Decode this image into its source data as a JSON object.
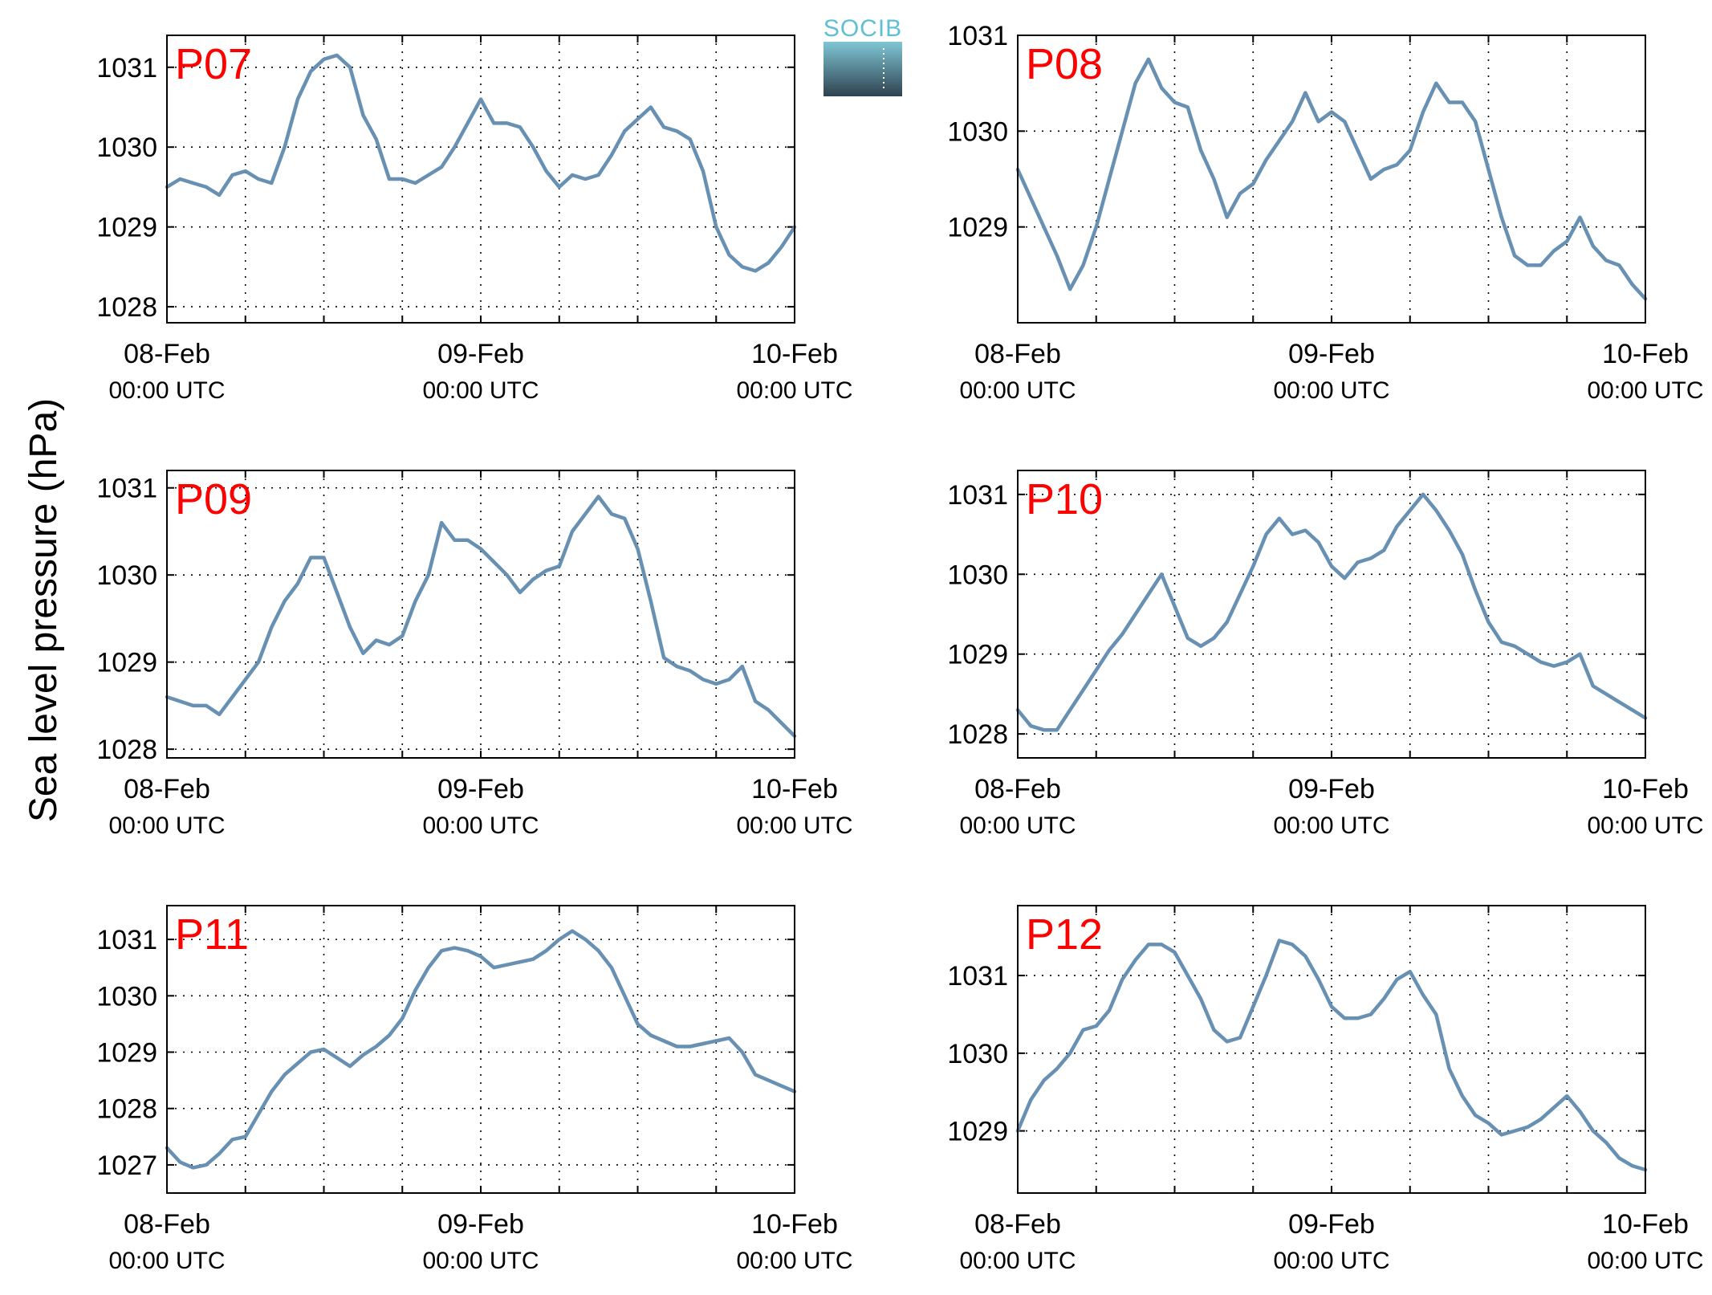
{
  "figure": {
    "ylabel": "Sea level pressure (hPa)",
    "logo_text": "SOCIB",
    "colors": {
      "line": "#6790b3",
      "panel_label": "#ff0000",
      "axes": "#000000",
      "grid": "#000000",
      "logo_text": "#5fc0d3",
      "logo_top": "#7fc6d4",
      "logo_bottom": "#2f4250"
    }
  },
  "chart_data": [
    {
      "type": "line",
      "panel_label": "P07",
      "grid": true,
      "xlim": [
        "2024-02-08 00:00",
        "2024-02-10 00:00"
      ],
      "xticks": [
        {
          "line1": "08-Feb",
          "line2": "00:00 UTC"
        },
        {
          "line1": "09-Feb",
          "line2": "00:00 UTC"
        },
        {
          "line1": "10-Feb",
          "line2": "00:00 UTC"
        }
      ],
      "ylim": [
        1027.8,
        1031.4
      ],
      "yticks": [
        1028,
        1029,
        1030,
        1031
      ],
      "series": [
        {
          "x_hours": [
            0,
            1,
            2,
            3,
            4,
            5,
            6,
            7,
            8,
            9,
            10,
            11,
            12,
            13,
            14,
            15,
            16,
            17,
            18,
            19,
            20,
            21,
            22,
            23,
            24,
            25,
            26,
            27,
            28,
            29,
            30,
            31,
            32,
            33,
            34,
            35,
            36,
            37,
            38,
            39,
            40,
            41,
            42,
            43,
            44,
            45,
            46,
            47,
            48
          ],
          "values": [
            1029.5,
            1029.6,
            1029.55,
            1029.5,
            1029.4,
            1029.65,
            1029.7,
            1029.6,
            1029.55,
            1030.0,
            1030.6,
            1030.95,
            1031.1,
            1031.15,
            1031.0,
            1030.4,
            1030.1,
            1029.6,
            1029.6,
            1029.55,
            1029.65,
            1029.75,
            1030.0,
            1030.3,
            1030.6,
            1030.3,
            1030.3,
            1030.25,
            1030.0,
            1029.7,
            1029.5,
            1029.65,
            1029.6,
            1029.65,
            1029.9,
            1030.2,
            1030.35,
            1030.5,
            1030.25,
            1030.2,
            1030.1,
            1029.7,
            1029.0,
            1028.65,
            1028.5,
            1028.45,
            1028.55,
            1028.75,
            1029.0
          ]
        }
      ]
    },
    {
      "type": "line",
      "panel_label": "P08",
      "grid": true,
      "xlim": [
        "2024-02-08 00:00",
        "2024-02-10 00:00"
      ],
      "xticks": [
        {
          "line1": "08-Feb",
          "line2": "00:00 UTC"
        },
        {
          "line1": "09-Feb",
          "line2": "00:00 UTC"
        },
        {
          "line1": "10-Feb",
          "line2": "00:00 UTC"
        }
      ],
      "ylim": [
        1028.0,
        1031.0
      ],
      "yticks": [
        1029,
        1030,
        1031
      ],
      "series": [
        {
          "x_hours": [
            0,
            1,
            2,
            3,
            4,
            5,
            6,
            7,
            8,
            9,
            10,
            11,
            12,
            13,
            14,
            15,
            16,
            17,
            18,
            19,
            20,
            21,
            22,
            23,
            24,
            25,
            26,
            27,
            28,
            29,
            30,
            31,
            32,
            33,
            34,
            35,
            36,
            37,
            38,
            39,
            40,
            41,
            42,
            43,
            44,
            45,
            46,
            47,
            48
          ],
          "values": [
            1029.6,
            1029.3,
            1029.0,
            1028.7,
            1028.35,
            1028.6,
            1029.0,
            1029.5,
            1030.0,
            1030.5,
            1030.75,
            1030.45,
            1030.3,
            1030.25,
            1029.8,
            1029.5,
            1029.1,
            1029.35,
            1029.45,
            1029.7,
            1029.9,
            1030.1,
            1030.4,
            1030.1,
            1030.2,
            1030.1,
            1029.8,
            1029.5,
            1029.6,
            1029.65,
            1029.8,
            1030.2,
            1030.5,
            1030.3,
            1030.3,
            1030.1,
            1029.6,
            1029.1,
            1028.7,
            1028.6,
            1028.6,
            1028.75,
            1028.85,
            1029.1,
            1028.8,
            1028.65,
            1028.6,
            1028.4,
            1028.25
          ]
        }
      ]
    },
    {
      "type": "line",
      "panel_label": "P09",
      "grid": true,
      "xlim": [
        "2024-02-08 00:00",
        "2024-02-10 00:00"
      ],
      "xticks": [
        {
          "line1": "08-Feb",
          "line2": "00:00 UTC"
        },
        {
          "line1": "09-Feb",
          "line2": "00:00 UTC"
        },
        {
          "line1": "10-Feb",
          "line2": "00:00 UTC"
        }
      ],
      "ylim": [
        1027.9,
        1031.2
      ],
      "yticks": [
        1028,
        1029,
        1030,
        1031
      ],
      "series": [
        {
          "x_hours": [
            0,
            1,
            2,
            3,
            4,
            5,
            6,
            7,
            8,
            9,
            10,
            11,
            12,
            13,
            14,
            15,
            16,
            17,
            18,
            19,
            20,
            21,
            22,
            23,
            24,
            25,
            26,
            27,
            28,
            29,
            30,
            31,
            32,
            33,
            34,
            35,
            36,
            37,
            38,
            39,
            40,
            41,
            42,
            43,
            44,
            45,
            46,
            47,
            48
          ],
          "values": [
            1028.6,
            1028.55,
            1028.5,
            1028.5,
            1028.4,
            1028.6,
            1028.8,
            1029.0,
            1029.4,
            1029.7,
            1029.9,
            1030.2,
            1030.2,
            1029.8,
            1029.4,
            1029.1,
            1029.25,
            1029.2,
            1029.3,
            1029.7,
            1030.0,
            1030.6,
            1030.4,
            1030.4,
            1030.3,
            1030.15,
            1030.0,
            1029.8,
            1029.95,
            1030.05,
            1030.1,
            1030.5,
            1030.7,
            1030.9,
            1030.7,
            1030.65,
            1030.3,
            1029.7,
            1029.05,
            1028.95,
            1028.9,
            1028.8,
            1028.75,
            1028.8,
            1028.95,
            1028.55,
            1028.45,
            1028.3,
            1028.15
          ]
        }
      ]
    },
    {
      "type": "line",
      "panel_label": "P10",
      "grid": true,
      "xlim": [
        "2024-02-08 00:00",
        "2024-02-10 00:00"
      ],
      "xticks": [
        {
          "line1": "08-Feb",
          "line2": "00:00 UTC"
        },
        {
          "line1": "09-Feb",
          "line2": "00:00 UTC"
        },
        {
          "line1": "10-Feb",
          "line2": "00:00 UTC"
        }
      ],
      "ylim": [
        1027.7,
        1031.3
      ],
      "yticks": [
        1028,
        1029,
        1030,
        1031
      ],
      "series": [
        {
          "x_hours": [
            0,
            1,
            2,
            3,
            4,
            5,
            6,
            7,
            8,
            9,
            10,
            11,
            12,
            13,
            14,
            15,
            16,
            17,
            18,
            19,
            20,
            21,
            22,
            23,
            24,
            25,
            26,
            27,
            28,
            29,
            30,
            31,
            32,
            33,
            34,
            35,
            36,
            37,
            38,
            39,
            40,
            41,
            42,
            43,
            44,
            45,
            46,
            47,
            48
          ],
          "values": [
            1028.3,
            1028.1,
            1028.05,
            1028.05,
            1028.3,
            1028.55,
            1028.8,
            1029.05,
            1029.25,
            1029.5,
            1029.75,
            1030.0,
            1029.6,
            1029.2,
            1029.1,
            1029.2,
            1029.4,
            1029.75,
            1030.1,
            1030.5,
            1030.7,
            1030.5,
            1030.55,
            1030.4,
            1030.1,
            1029.95,
            1030.15,
            1030.2,
            1030.3,
            1030.6,
            1030.8,
            1031.0,
            1030.8,
            1030.55,
            1030.25,
            1029.8,
            1029.4,
            1029.15,
            1029.1,
            1029.0,
            1028.9,
            1028.85,
            1028.9,
            1029.0,
            1028.6,
            1028.5,
            1028.4,
            1028.3,
            1028.2
          ]
        }
      ]
    },
    {
      "type": "line",
      "panel_label": "P11",
      "grid": true,
      "xlim": [
        "2024-02-08 00:00",
        "2024-02-10 00:00"
      ],
      "xticks": [
        {
          "line1": "08-Feb",
          "line2": "00:00 UTC"
        },
        {
          "line1": "09-Feb",
          "line2": "00:00 UTC"
        },
        {
          "line1": "10-Feb",
          "line2": "00:00 UTC"
        }
      ],
      "ylim": [
        1026.5,
        1031.6
      ],
      "yticks": [
        1027,
        1028,
        1029,
        1030,
        1031
      ],
      "series": [
        {
          "x_hours": [
            0,
            1,
            2,
            3,
            4,
            5,
            6,
            7,
            8,
            9,
            10,
            11,
            12,
            13,
            14,
            15,
            16,
            17,
            18,
            19,
            20,
            21,
            22,
            23,
            24,
            25,
            26,
            27,
            28,
            29,
            30,
            31,
            32,
            33,
            34,
            35,
            36,
            37,
            38,
            39,
            40,
            41,
            42,
            43,
            44,
            45,
            46,
            47,
            48
          ],
          "values": [
            1027.3,
            1027.05,
            1026.95,
            1027.0,
            1027.2,
            1027.45,
            1027.5,
            1027.9,
            1028.3,
            1028.6,
            1028.8,
            1029.0,
            1029.05,
            1028.9,
            1028.75,
            1028.95,
            1029.1,
            1029.3,
            1029.6,
            1030.1,
            1030.5,
            1030.8,
            1030.85,
            1030.8,
            1030.7,
            1030.5,
            1030.55,
            1030.6,
            1030.65,
            1030.8,
            1031.0,
            1031.15,
            1031.0,
            1030.8,
            1030.5,
            1030.0,
            1029.5,
            1029.3,
            1029.2,
            1029.1,
            1029.1,
            1029.15,
            1029.2,
            1029.25,
            1029.0,
            1028.6,
            1028.5,
            1028.4,
            1028.3
          ]
        }
      ]
    },
    {
      "type": "line",
      "panel_label": "P12",
      "grid": true,
      "xlim": [
        "2024-02-08 00:00",
        "2024-02-10 00:00"
      ],
      "xticks": [
        {
          "line1": "08-Feb",
          "line2": "00:00 UTC"
        },
        {
          "line1": "09-Feb",
          "line2": "00:00 UTC"
        },
        {
          "line1": "10-Feb",
          "line2": "00:00 UTC"
        }
      ],
      "ylim": [
        1028.2,
        1031.9
      ],
      "yticks": [
        1029,
        1030,
        1031
      ],
      "series": [
        {
          "x_hours": [
            0,
            1,
            2,
            3,
            4,
            5,
            6,
            7,
            8,
            9,
            10,
            11,
            12,
            13,
            14,
            15,
            16,
            17,
            18,
            19,
            20,
            21,
            22,
            23,
            24,
            25,
            26,
            27,
            28,
            29,
            30,
            31,
            32,
            33,
            34,
            35,
            36,
            37,
            38,
            39,
            40,
            41,
            42,
            43,
            44,
            45,
            46,
            47,
            48
          ],
          "values": [
            1029.0,
            1029.4,
            1029.65,
            1029.8,
            1030.0,
            1030.3,
            1030.35,
            1030.55,
            1030.95,
            1031.2,
            1031.4,
            1031.4,
            1031.3,
            1031.0,
            1030.7,
            1030.3,
            1030.15,
            1030.2,
            1030.6,
            1031.0,
            1031.45,
            1031.4,
            1031.25,
            1030.95,
            1030.6,
            1030.45,
            1030.45,
            1030.5,
            1030.7,
            1030.95,
            1031.05,
            1030.75,
            1030.5,
            1029.8,
            1029.45,
            1029.2,
            1029.1,
            1028.95,
            1029.0,
            1029.05,
            1029.15,
            1029.3,
            1029.45,
            1029.25,
            1029.0,
            1028.85,
            1028.65,
            1028.55,
            1028.5
          ]
        }
      ]
    }
  ]
}
